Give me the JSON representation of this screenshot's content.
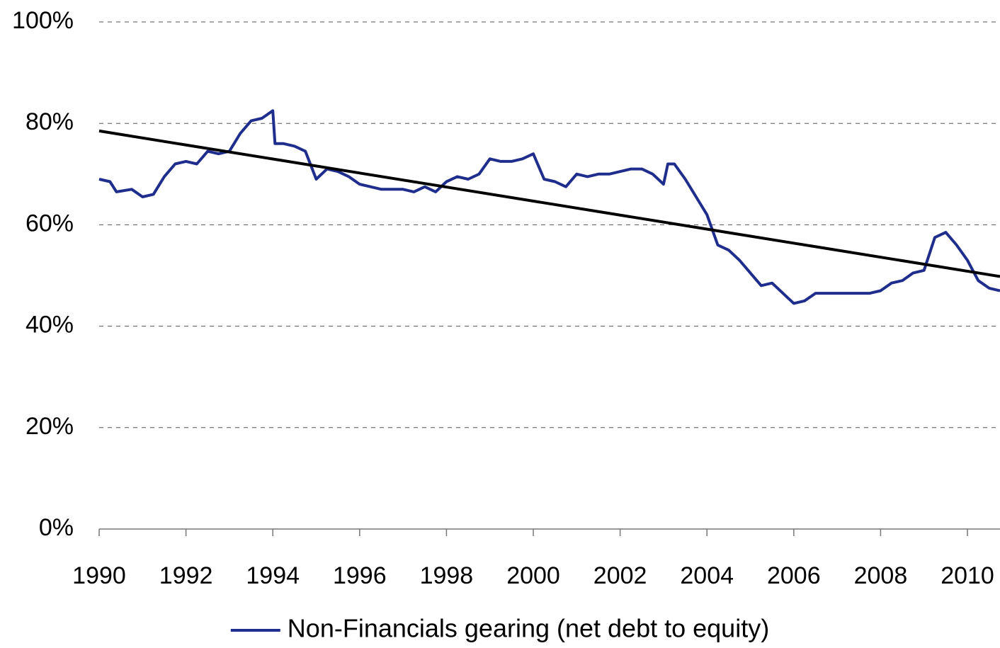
{
  "chart_data": {
    "type": "line",
    "xlim": [
      1990,
      2010.75
    ],
    "xticks": [
      1990,
      1992,
      1994,
      1996,
      1998,
      2000,
      2002,
      2004,
      2006,
      2008,
      2010
    ],
    "ylim": [
      0,
      100
    ],
    "yticks": [
      {
        "value": 0,
        "label": "0%"
      },
      {
        "value": 20,
        "label": "20%"
      },
      {
        "value": 40,
        "label": "40%"
      },
      {
        "value": 60,
        "label": "60%"
      },
      {
        "value": 80,
        "label": "80%"
      },
      {
        "value": 100,
        "label": "100%"
      }
    ],
    "grid": true,
    "legend": "bottom",
    "series": [
      {
        "name": "Non-Financials gearing (net debt to equity)",
        "color": "#1f2e8c",
        "x": [
          1990,
          1990.25,
          1990.4,
          1990.75,
          1991,
          1991.25,
          1991.5,
          1991.75,
          1992,
          1992.25,
          1992.5,
          1992.75,
          1993,
          1993.25,
          1993.5,
          1993.75,
          1994,
          1994.05,
          1994.25,
          1994.5,
          1994.75,
          1995,
          1995.25,
          1995.5,
          1995.75,
          1996,
          1996.25,
          1996.5,
          1996.75,
          1997,
          1997.25,
          1997.5,
          1997.75,
          1998,
          1998.25,
          1998.5,
          1998.75,
          1999,
          1999.25,
          1999.5,
          1999.75,
          2000,
          2000.25,
          2000.5,
          2000.75,
          2001,
          2001.25,
          2001.5,
          2001.75,
          2002,
          2002.25,
          2002.5,
          2002.75,
          2003,
          2003.1,
          2003.25,
          2003.5,
          2003.75,
          2004,
          2004.25,
          2004.5,
          2004.75,
          2005,
          2005.25,
          2005.5,
          2005.75,
          2006,
          2006.25,
          2006.5,
          2006.75,
          2007,
          2007.25,
          2007.5,
          2007.75,
          2008,
          2008.25,
          2008.5,
          2008.75,
          2009,
          2009.25,
          2009.5,
          2009.75,
          2010,
          2010.25,
          2010.5,
          2010.75
        ],
        "values": [
          69,
          68.5,
          66.5,
          67,
          65.5,
          66,
          69.5,
          72,
          72.5,
          72,
          74.5,
          74,
          74.5,
          78,
          80.5,
          81,
          82.5,
          76,
          76,
          75.5,
          74.5,
          69,
          71,
          70.5,
          69.5,
          68,
          67.5,
          67,
          67,
          67,
          66.5,
          67.5,
          66.5,
          68.5,
          69.5,
          69,
          70,
          73,
          72.5,
          72.5,
          73,
          74,
          69,
          68.5,
          67.5,
          70,
          69.5,
          70,
          70,
          70.5,
          71,
          71,
          70,
          68,
          72,
          72,
          69,
          65.5,
          62,
          56,
          55,
          53,
          50.5,
          48,
          48.5,
          46.5,
          44.5,
          45,
          46.5,
          46.5,
          46.5,
          46.5,
          46.5,
          46.5,
          47,
          48.5,
          49,
          50.5,
          51,
          57.5,
          58.5,
          56,
          53,
          49,
          47.5,
          47
        ]
      },
      {
        "color": "#000000",
        "x": [
          1990,
          2010.75
        ],
        "values": [
          78.5,
          49.8
        ]
      }
    ]
  }
}
